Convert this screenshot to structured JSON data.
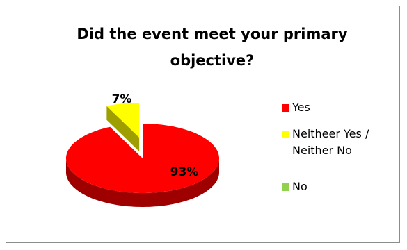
{
  "chart_data": {
    "type": "pie",
    "title": "Did the event meet your primary objective?",
    "categories": [
      "Yes",
      "Neitheer Yes / Neither No",
      "No"
    ],
    "values": [
      93,
      7,
      0
    ],
    "value_labels": [
      "93%",
      "7%",
      null
    ],
    "colors": [
      "#ff0000",
      "#ffff00",
      "#92d050"
    ],
    "legend": "right"
  }
}
